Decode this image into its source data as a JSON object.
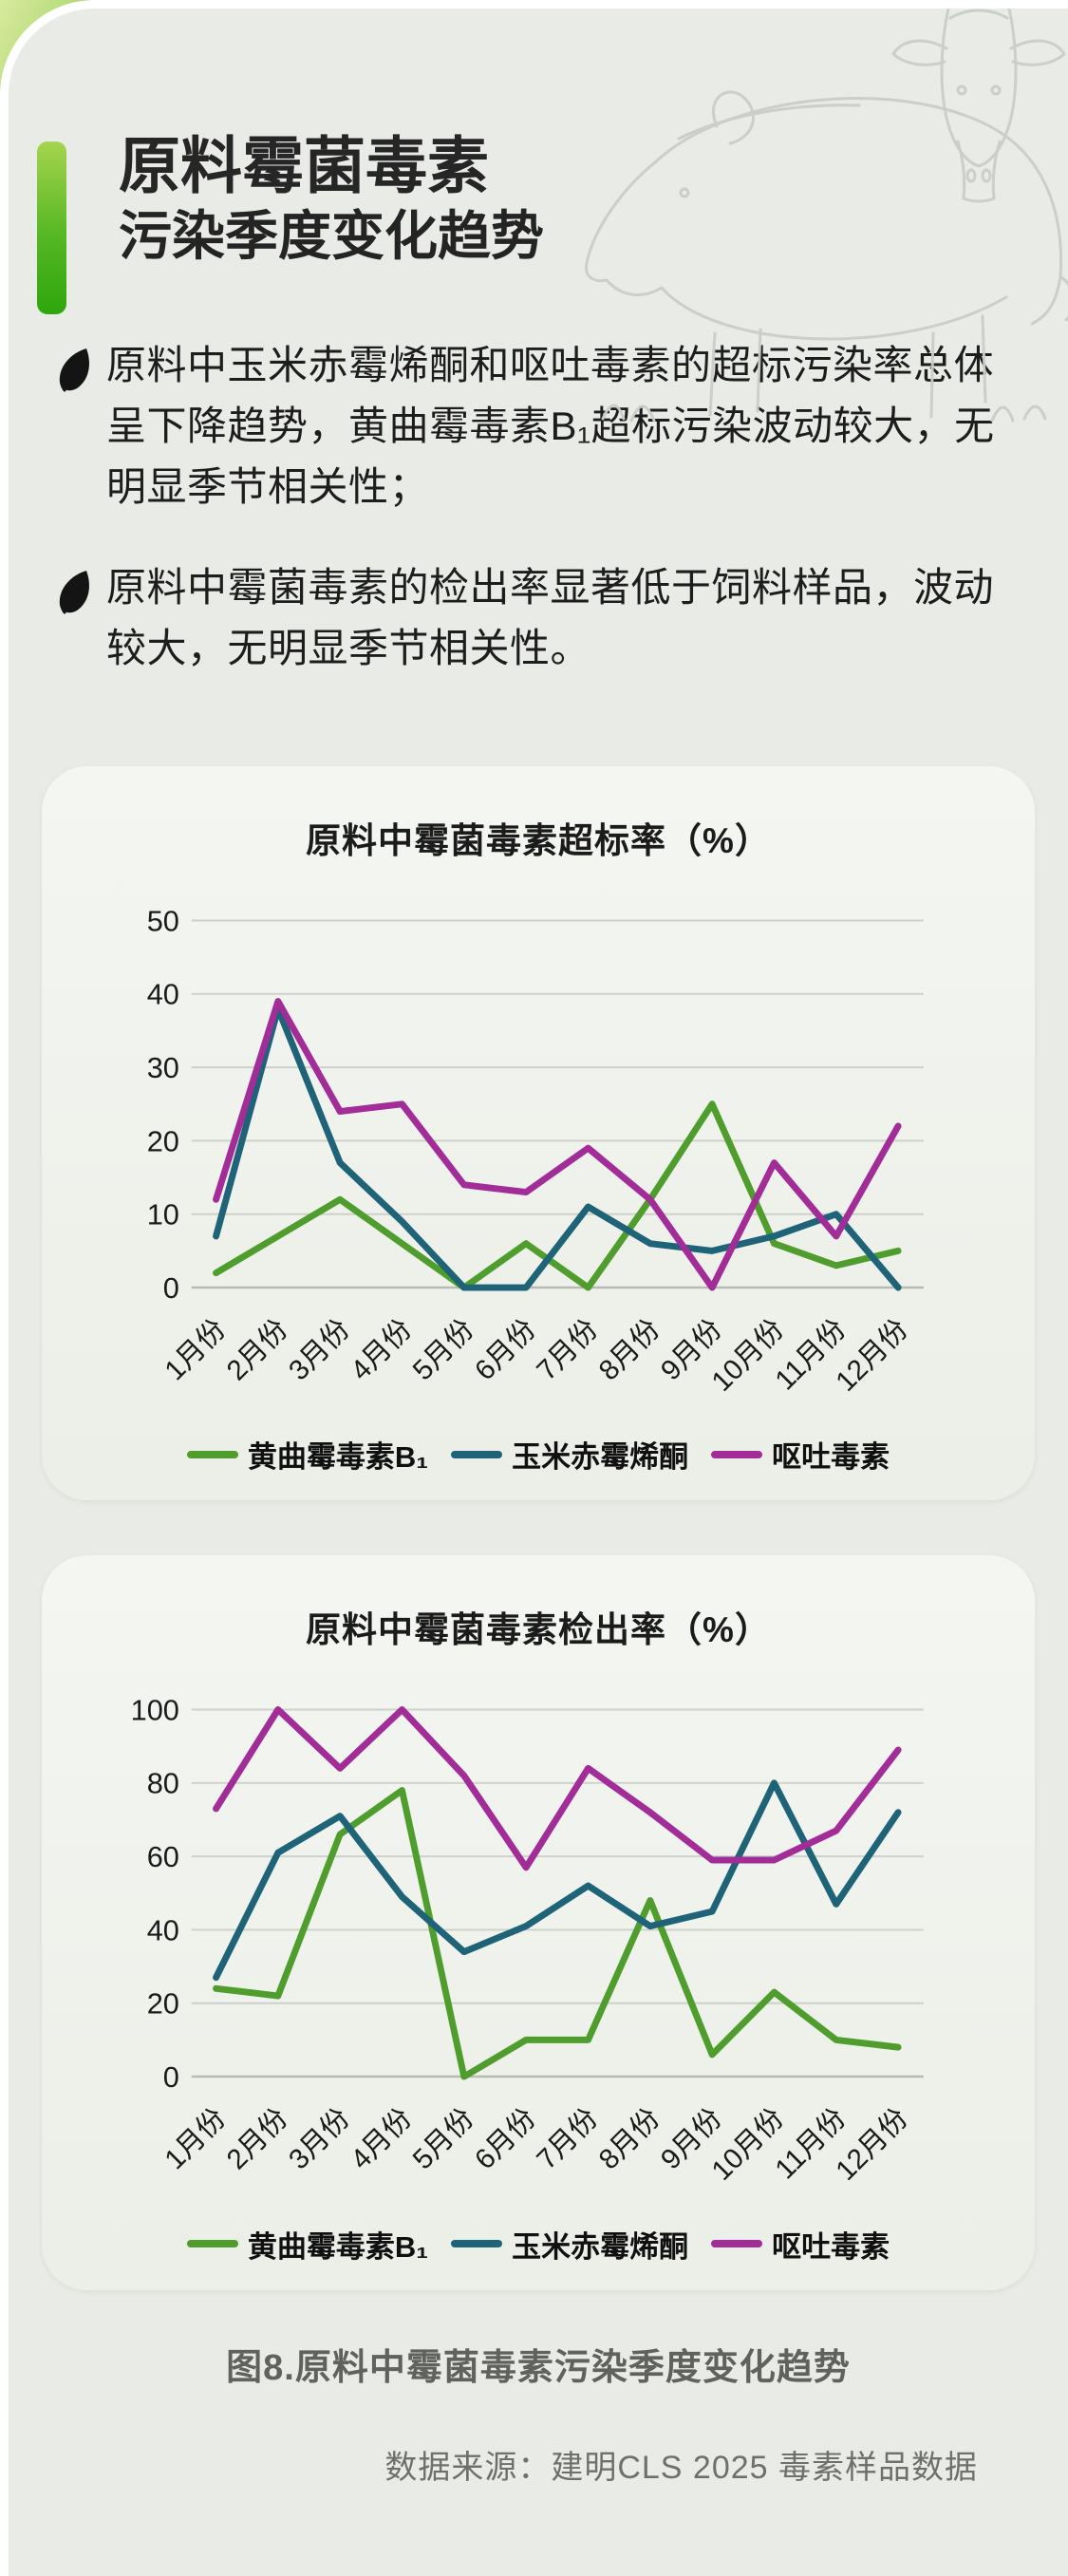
{
  "header": {
    "title_line1": "原料霉菌毒素",
    "title_line2": "污染季度变化趋势"
  },
  "bullets": [
    {
      "icon": "leaf-icon",
      "text": "原料中玉米赤霉烯酮和呕吐毒素的超标污染率总体呈下降趋势，黄曲霉毒素B₁超标污染波动较大，无明显季节相关性；"
    },
    {
      "icon": "leaf-icon",
      "text": "原料中霉菌毒素的检出率显著低于饲料样品，波动较大，无明显季节相关性。"
    }
  ],
  "decor": {
    "top_right_art": "cow-sketch",
    "right_art": "pig-sketch",
    "accent_green_light": "#a6d44e",
    "accent_green_dark": "#2fa60d",
    "page_background": "#e9ebe6",
    "chart_card_background": "#f3f5f1"
  },
  "chart_data": [
    {
      "type": "line",
      "title": "原料中霉菌毒素超标率（%）",
      "categories": [
        "1月份",
        "2月份",
        "3月份",
        "4月份",
        "5月份",
        "6月份",
        "7月份",
        "8月份",
        "9月份",
        "10月份",
        "11月份",
        "12月份"
      ],
      "series": [
        {
          "name": "黄曲霉毒素B₁",
          "color": "#4f9d2d",
          "values": [
            2,
            7,
            12,
            6,
            0,
            6,
            0,
            12,
            25,
            6,
            3,
            5
          ]
        },
        {
          "name": "玉米赤霉烯酮",
          "color": "#1e6378",
          "values": [
            7,
            38,
            17,
            9,
            0,
            0,
            11,
            6,
            5,
            7,
            10,
            0
          ]
        },
        {
          "name": "呕吐毒素",
          "color": "#a22c98",
          "values": [
            12,
            39,
            24,
            25,
            14,
            13,
            19,
            12,
            0,
            17,
            7,
            22
          ]
        }
      ],
      "xlabel": "",
      "ylabel": "",
      "ylim": [
        0,
        50
      ],
      "ytick_step": 10,
      "grid": true,
      "legend_position": "bottom"
    },
    {
      "type": "line",
      "title": "原料中霉菌毒素检出率（%）",
      "categories": [
        "1月份",
        "2月份",
        "3月份",
        "4月份",
        "5月份",
        "6月份",
        "7月份",
        "8月份",
        "9月份",
        "10月份",
        "11月份",
        "12月份"
      ],
      "series": [
        {
          "name": "黄曲霉毒素B₁",
          "color": "#4f9d2d",
          "values": [
            24,
            22,
            66,
            78,
            0,
            10,
            10,
            48,
            6,
            23,
            10,
            8
          ]
        },
        {
          "name": "玉米赤霉烯酮",
          "color": "#1e6378",
          "values": [
            27,
            61,
            71,
            49,
            34,
            41,
            52,
            41,
            45,
            80,
            47,
            72
          ]
        },
        {
          "name": "呕吐毒素",
          "color": "#a22c98",
          "values": [
            73,
            100,
            84,
            100,
            82,
            57,
            84,
            72,
            59,
            59,
            67,
            89
          ]
        }
      ],
      "xlabel": "",
      "ylabel": "",
      "ylim": [
        0,
        100
      ],
      "ytick_step": 20,
      "grid": true,
      "legend_position": "bottom"
    }
  ],
  "footer": {
    "caption": "图8.原料中霉菌毒素污染季度变化趋势",
    "source": "数据来源：建明CLS 2025 毒素样品数据"
  }
}
